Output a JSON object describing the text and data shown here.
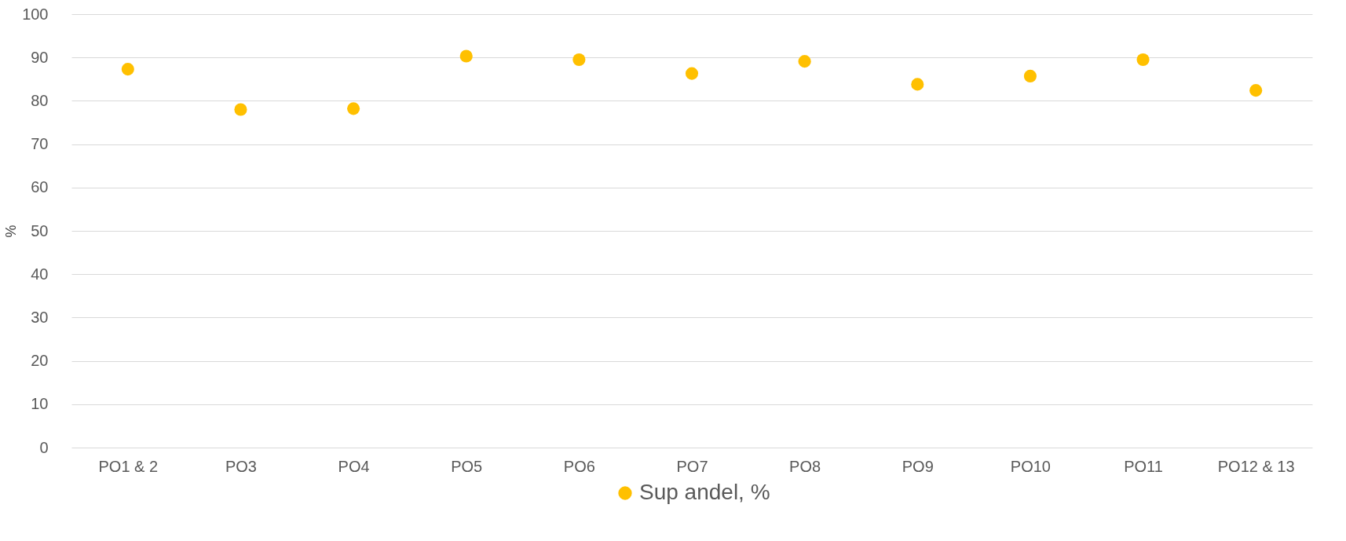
{
  "chart_data": {
    "type": "scatter",
    "ylabel": "%",
    "categories": [
      "PO1 & 2",
      "PO3",
      "PO4",
      "PO5",
      "PO6",
      "PO7",
      "PO8",
      "PO9",
      "PO10",
      "PO11",
      "PO12 & 13"
    ],
    "series": [
      {
        "name": "Sup andel, %",
        "color": "#ffc000",
        "values": [
          87.3,
          78.0,
          78.2,
          90.3,
          89.5,
          86.3,
          89.1,
          83.8,
          85.7,
          89.5,
          82.4
        ]
      }
    ],
    "ylim": [
      0,
      100
    ],
    "yticks": [
      0,
      10,
      20,
      30,
      40,
      50,
      60,
      70,
      80,
      90,
      100
    ],
    "grid": "y",
    "legend": "bottom",
    "marker": "circle"
  }
}
